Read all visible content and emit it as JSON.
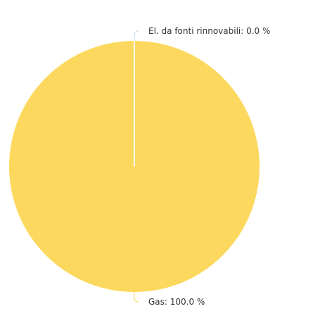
{
  "chart_data": {
    "type": "pie",
    "title": "",
    "slices": [
      {
        "label": "El. da fonti rinnovabili",
        "value": 0.0,
        "display": "El. da fonti rinnovabili: 0.0 %",
        "color": "#c7d7f5"
      },
      {
        "label": "Gas",
        "value": 100.0,
        "display": "Gas: 100.0 %",
        "color": "#fcd95e"
      }
    ],
    "legend": "none",
    "start_angle": "top",
    "separator_color": "#ffffff"
  }
}
